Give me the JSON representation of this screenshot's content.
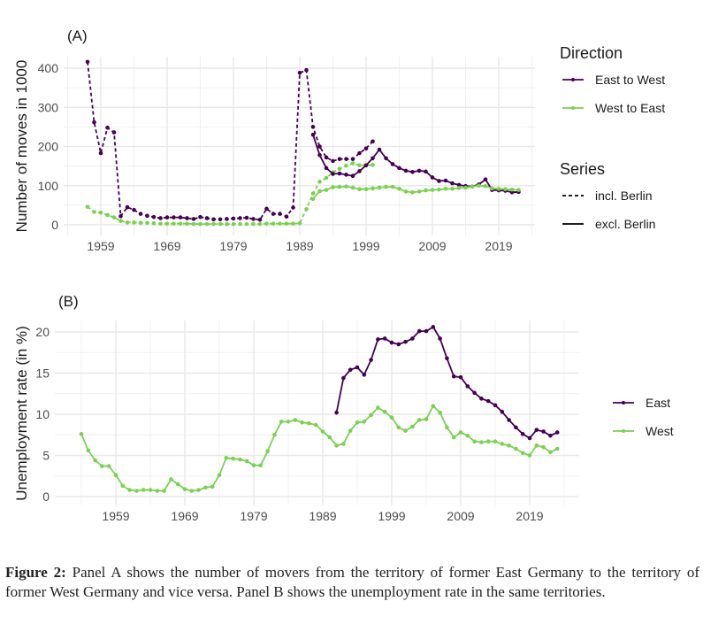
{
  "chart_data": [
    {
      "type": "line",
      "panel_label": "(A)",
      "ylabel": "Number of moves in 1000",
      "xlabel": "",
      "xlim": [
        1955,
        2022
      ],
      "ylim": [
        0,
        420
      ],
      "x_ticks": [
        1959,
        1969,
        1979,
        1989,
        1999,
        2009,
        2019
      ],
      "y_ticks": [
        0,
        100,
        200,
        300,
        400
      ],
      "grid": true,
      "legend": {
        "placement": "right",
        "groups": [
          {
            "title": "Direction",
            "entries": [
              {
                "label": "East to West",
                "color": "#440154"
              },
              {
                "label": "West to East",
                "color": "#7AD151"
              }
            ]
          },
          {
            "title": "Series",
            "entries": [
              {
                "label": "incl. Berlin",
                "linetype": "dashed"
              },
              {
                "label": "excl. Berlin",
                "linetype": "solid"
              }
            ]
          }
        ]
      },
      "series": [
        {
          "name": "East to West",
          "linetype": "incl. Berlin",
          "color": "#440154",
          "x": [
            1957,
            1958,
            1959,
            1960,
            1961,
            1962,
            1963,
            1964,
            1965,
            1966,
            1967,
            1968,
            1969,
            1970,
            1971,
            1972,
            1973,
            1974,
            1975,
            1976,
            1977,
            1978,
            1979,
            1980,
            1981,
            1982,
            1983,
            1984,
            1985,
            1986,
            1987,
            1988,
            1989,
            1990,
            1991,
            1992,
            1993,
            1994,
            1995,
            1996,
            1997,
            1998,
            1999,
            2000
          ],
          "y": [
            416,
            262,
            183,
            248,
            236,
            22,
            45,
            38,
            28,
            23,
            20,
            17,
            19,
            19,
            19,
            17,
            15,
            20,
            17,
            14,
            14,
            15,
            16,
            17,
            18,
            15,
            13,
            41,
            28,
            28,
            21,
            44,
            388,
            395,
            250,
            200,
            172,
            163,
            168,
            168,
            168,
            183,
            195,
            213
          ]
        },
        {
          "name": "West to East",
          "linetype": "incl. Berlin",
          "color": "#7AD151",
          "x": [
            1957,
            1958,
            1959,
            1960,
            1961,
            1962,
            1963,
            1964,
            1965,
            1966,
            1967,
            1968,
            1969,
            1970,
            1971,
            1972,
            1973,
            1974,
            1975,
            1976,
            1977,
            1978,
            1979,
            1980,
            1981,
            1982,
            1983,
            1984,
            1985,
            1986,
            1987,
            1988,
            1989,
            1990,
            1991,
            1992,
            1993,
            1994,
            1995,
            1996,
            1997,
            1998,
            1999,
            2000
          ],
          "y": [
            46,
            33,
            31,
            25,
            19,
            10,
            6,
            6,
            5,
            5,
            4,
            3,
            3,
            3,
            3,
            3,
            2,
            2,
            2,
            2,
            2,
            2,
            2,
            2,
            2,
            2,
            2,
            3,
            3,
            3,
            3,
            3,
            4,
            40,
            80,
            110,
            120,
            134,
            143,
            151,
            157,
            152,
            152,
            153
          ]
        },
        {
          "name": "East to West",
          "linetype": "excl. Berlin",
          "color": "#440154",
          "x": [
            1991,
            1992,
            1993,
            1994,
            1995,
            1996,
            1997,
            1998,
            1999,
            2000,
            2001,
            2002,
            2003,
            2004,
            2005,
            2006,
            2007,
            2008,
            2009,
            2010,
            2011,
            2012,
            2013,
            2014,
            2015,
            2016,
            2017,
            2018,
            2019,
            2020,
            2021,
            2022
          ],
          "y": [
            230,
            178,
            145,
            130,
            131,
            128,
            125,
            137,
            152,
            170,
            192,
            170,
            155,
            145,
            138,
            135,
            138,
            136,
            121,
            112,
            113,
            106,
            102,
            99,
            98,
            103,
            116,
            89,
            88,
            87,
            83,
            84
          ]
        },
        {
          "name": "West to East",
          "linetype": "excl. Berlin",
          "color": "#7AD151",
          "x": [
            1991,
            1992,
            1993,
            1994,
            1995,
            1996,
            1997,
            1998,
            1999,
            2000,
            2001,
            2002,
            2003,
            2004,
            2005,
            2006,
            2007,
            2008,
            2009,
            2010,
            2011,
            2012,
            2013,
            2014,
            2015,
            2016,
            2017,
            2018,
            2019,
            2020,
            2021,
            2022
          ],
          "y": [
            66,
            86,
            89,
            96,
            97,
            98,
            95,
            91,
            91,
            93,
            95,
            97,
            97,
            92,
            85,
            83,
            85,
            88,
            89,
            90,
            92,
            92,
            94,
            95,
            98,
            100,
            99,
            93,
            92,
            91,
            90,
            89
          ]
        }
      ]
    },
    {
      "type": "line",
      "panel_label": "(B)",
      "ylabel": "Unemployment rate (in %)",
      "xlabel": "",
      "xlim": [
        1953,
        2024
      ],
      "ylim": [
        0,
        21
      ],
      "x_ticks": [
        1959,
        1969,
        1979,
        1989,
        1999,
        2009,
        2019
      ],
      "y_ticks": [
        0,
        5,
        10,
        15,
        20
      ],
      "grid": true,
      "legend": {
        "placement": "right",
        "groups": [
          {
            "title": "",
            "entries": [
              {
                "label": "East",
                "color": "#440154"
              },
              {
                "label": "West",
                "color": "#7AD151"
              }
            ]
          }
        ]
      },
      "series": [
        {
          "name": "East",
          "color": "#440154",
          "x": [
            1991,
            1992,
            1993,
            1994,
            1995,
            1996,
            1997,
            1998,
            1999,
            2000,
            2001,
            2002,
            2003,
            2004,
            2005,
            2006,
            2007,
            2008,
            2009,
            2010,
            2011,
            2012,
            2013,
            2014,
            2015,
            2016,
            2017,
            2018,
            2019,
            2020,
            2021,
            2022,
            2023
          ],
          "y": [
            10.2,
            14.4,
            15.4,
            15.7,
            14.8,
            16.6,
            19.1,
            19.2,
            18.7,
            18.5,
            18.8,
            19.2,
            20.1,
            20.1,
            20.6,
            19.2,
            16.8,
            14.6,
            14.5,
            13.4,
            12.6,
            11.9,
            11.6,
            11.1,
            10.3,
            9.3,
            8.4,
            7.6,
            7.1,
            8.1,
            7.9,
            7.4,
            7.8
          ]
        },
        {
          "name": "West",
          "color": "#7AD151",
          "x": [
            1954,
            1955,
            1956,
            1957,
            1958,
            1959,
            1960,
            1961,
            1962,
            1963,
            1964,
            1965,
            1966,
            1967,
            1968,
            1969,
            1970,
            1971,
            1972,
            1973,
            1974,
            1975,
            1976,
            1977,
            1978,
            1979,
            1980,
            1981,
            1982,
            1983,
            1984,
            1985,
            1986,
            1987,
            1988,
            1989,
            1990,
            1991,
            1992,
            1993,
            1994,
            1995,
            1996,
            1997,
            1998,
            1999,
            2000,
            2001,
            2002,
            2003,
            2004,
            2005,
            2006,
            2007,
            2008,
            2009,
            2010,
            2011,
            2012,
            2013,
            2014,
            2015,
            2016,
            2017,
            2018,
            2019,
            2020,
            2021,
            2022,
            2023
          ],
          "y": [
            7.6,
            5.6,
            4.4,
            3.7,
            3.7,
            2.6,
            1.3,
            0.8,
            0.7,
            0.8,
            0.8,
            0.7,
            0.7,
            2.1,
            1.5,
            0.9,
            0.7,
            0.8,
            1.1,
            1.2,
            2.6,
            4.7,
            4.6,
            4.5,
            4.3,
            3.8,
            3.8,
            5.5,
            7.5,
            9.1,
            9.1,
            9.3,
            9.0,
            8.9,
            8.7,
            7.9,
            7.2,
            6.2,
            6.4,
            8.0,
            9.0,
            9.1,
            9.9,
            10.8,
            10.3,
            9.6,
            8.4,
            8.0,
            8.5,
            9.3,
            9.4,
            11.0,
            10.2,
            8.4,
            7.2,
            7.8,
            7.4,
            6.7,
            6.6,
            6.7,
            6.7,
            6.4,
            6.2,
            5.8,
            5.3,
            5.0,
            6.2,
            6.0,
            5.4,
            5.8
          ]
        }
      ]
    }
  ],
  "caption": {
    "label": "Figure 2:",
    "text": "Panel A shows the number of movers from the territory of former East Germany to the territory of former West Germany and vice versa. Panel B shows the unemployment rate in the same territories."
  }
}
